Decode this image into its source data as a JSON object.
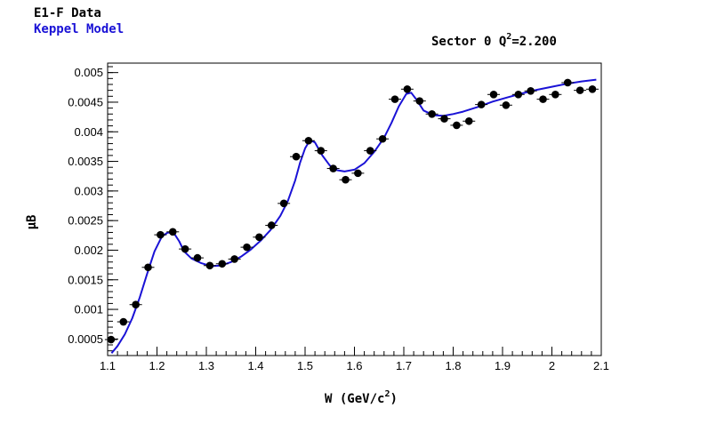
{
  "legend": {
    "data_label": "E1-F Data",
    "model_label": "Keppel Model",
    "data_color": "#000000",
    "model_color": "#1a12d6"
  },
  "chart_data": {
    "type": "scatter",
    "title": "",
    "sector_label": "Sector 0 Q",
    "q2_superscript": "2",
    "q2_value": "=2.200",
    "xlabel_main": "W (GeV/c",
    "xlabel_superscript": "2",
    "xlabel_close": ")",
    "ylabel": "μB",
    "xlim": [
      1.1,
      2.1
    ],
    "ylim": [
      0.00022,
      0.00516
    ],
    "grid": false,
    "x_ticks": [
      1.1,
      1.2,
      1.3,
      1.4,
      1.5,
      1.6,
      1.7,
      1.8,
      1.9,
      2,
      2.1
    ],
    "x_tick_labels": [
      "1.1",
      "1.2",
      "1.3",
      "1.4",
      "1.5",
      "1.6",
      "1.7",
      "1.8",
      "1.9",
      "2",
      "2.1"
    ],
    "y_ticks": [
      0.0005,
      0.001,
      0.0015,
      0.002,
      0.0025,
      0.003,
      0.0035,
      0.004,
      0.0045,
      0.005
    ],
    "y_tick_labels": [
      "0.0005",
      "0.001",
      "0.0015",
      "0.002",
      "0.0025",
      "0.003",
      "0.0035",
      "0.004",
      "0.0045",
      "0.005"
    ],
    "series": [
      {
        "name": "E1-F Data",
        "style": "points-with-error-bars",
        "x": [
          1.107,
          1.132,
          1.157,
          1.182,
          1.207,
          1.232,
          1.257,
          1.282,
          1.307,
          1.332,
          1.357,
          1.382,
          1.407,
          1.432,
          1.457,
          1.482,
          1.507,
          1.532,
          1.557,
          1.582,
          1.607,
          1.632,
          1.657,
          1.682,
          1.707,
          1.732,
          1.757,
          1.782,
          1.807,
          1.832,
          1.857,
          1.882,
          1.907,
          1.932,
          1.957,
          1.982,
          2.007,
          2.032,
          2.057,
          2.082
        ],
        "y": [
          0.00049,
          0.00079,
          0.00108,
          0.00171,
          0.00226,
          0.00231,
          0.00202,
          0.00187,
          0.00174,
          0.00177,
          0.00185,
          0.00205,
          0.00222,
          0.00242,
          0.00279,
          0.00358,
          0.00385,
          0.00368,
          0.00338,
          0.00319,
          0.0033,
          0.00368,
          0.00388,
          0.00455,
          0.00472,
          0.00452,
          0.0043,
          0.00422,
          0.00411,
          0.00418,
          0.00446,
          0.00463,
          0.00445,
          0.00463,
          0.00469,
          0.00455,
          0.00463,
          0.00483,
          0.0047,
          0.00472
        ],
        "yerr": [
          4e-05,
          4e-05,
          4e-05,
          4e-05,
          4e-05,
          4e-05,
          4e-05,
          4e-05,
          4e-05,
          4e-05,
          4e-05,
          4e-05,
          4e-05,
          4e-05,
          4e-05,
          4e-05,
          4e-05,
          4e-05,
          4e-05,
          4e-05,
          4e-05,
          4e-05,
          4e-05,
          4e-05,
          4e-05,
          4e-05,
          4e-05,
          4e-05,
          4e-05,
          4e-05,
          4e-05,
          4e-05,
          4e-05,
          4e-05,
          4e-05,
          4e-05,
          4e-05,
          4e-05,
          4e-05,
          4e-05
        ]
      },
      {
        "name": "Keppel Model",
        "style": "line",
        "x": [
          1.108,
          1.12,
          1.135,
          1.15,
          1.165,
          1.18,
          1.195,
          1.21,
          1.222,
          1.235,
          1.245,
          1.255,
          1.27,
          1.29,
          1.31,
          1.33,
          1.35,
          1.37,
          1.39,
          1.41,
          1.43,
          1.45,
          1.465,
          1.48,
          1.49,
          1.5,
          1.51,
          1.52,
          1.535,
          1.55,
          1.565,
          1.58,
          1.6,
          1.62,
          1.64,
          1.66,
          1.675,
          1.69,
          1.705,
          1.715,
          1.725,
          1.74,
          1.76,
          1.78,
          1.8,
          1.82,
          1.85,
          1.88,
          1.91,
          1.94,
          1.97,
          2.0,
          2.03,
          2.06,
          2.09
        ],
        "y": [
          0.00026,
          0.00038,
          0.00058,
          0.00085,
          0.0012,
          0.0016,
          0.00198,
          0.00223,
          0.0023,
          0.00228,
          0.00215,
          0.00198,
          0.00186,
          0.00178,
          0.00173,
          0.00174,
          0.0018,
          0.00189,
          0.00201,
          0.00216,
          0.00234,
          0.00258,
          0.00283,
          0.00318,
          0.00348,
          0.00372,
          0.00386,
          0.00382,
          0.0036,
          0.00343,
          0.00335,
          0.00333,
          0.00336,
          0.00347,
          0.00366,
          0.0039,
          0.00415,
          0.00443,
          0.00464,
          0.00466,
          0.00455,
          0.00436,
          0.00428,
          0.00427,
          0.0043,
          0.00434,
          0.00442,
          0.00451,
          0.00458,
          0.00465,
          0.00471,
          0.00476,
          0.00481,
          0.00485,
          0.00488
        ]
      }
    ]
  }
}
